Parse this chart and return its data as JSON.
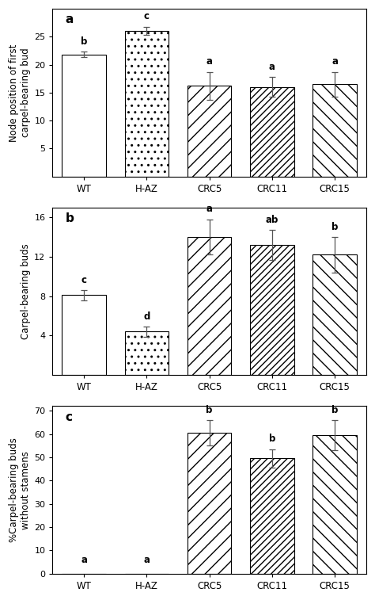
{
  "categories": [
    "WT",
    "H-AZ",
    "CRC5",
    "CRC11",
    "CRC15"
  ],
  "panel_a": {
    "label": "a",
    "ylabel": "Node position of first\ncarpel-bearing bud",
    "values": [
      21.8,
      26.1,
      16.2,
      16.0,
      16.5
    ],
    "errors": [
      0.5,
      0.7,
      2.5,
      1.8,
      2.2
    ],
    "sig_labels": [
      "b",
      "c",
      "a",
      "a",
      "a"
    ],
    "ylim": [
      0,
      30
    ],
    "yticks": [
      5,
      10,
      15,
      20,
      25
    ]
  },
  "panel_b": {
    "label": "b",
    "ylabel": "Carpel-bearing buds",
    "values": [
      8.1,
      4.4,
      14.0,
      13.2,
      12.2
    ],
    "errors": [
      0.5,
      0.5,
      1.8,
      1.5,
      1.8
    ],
    "sig_labels": [
      "c",
      "d",
      "a",
      "ab",
      "b"
    ],
    "ylim": [
      0,
      17
    ],
    "yticks": [
      4,
      8,
      12,
      16
    ]
  },
  "panel_c": {
    "label": "c",
    "ylabel": "%Carpel-bearing buds\nwithout stamens",
    "values": [
      0,
      0,
      60.5,
      49.5,
      59.5
    ],
    "errors": [
      0,
      0,
      5.5,
      4.0,
      6.5
    ],
    "sig_labels": [
      "a",
      "a",
      "b",
      "b",
      "b"
    ],
    "ylim": [
      0,
      72
    ],
    "yticks": [
      0,
      10,
      20,
      30,
      40,
      50,
      60,
      70
    ]
  },
  "hatches": [
    "",
    "..",
    "//",
    "////",
    "\\\\"
  ],
  "bar_edgecolor": "black",
  "figure_bg": "white"
}
